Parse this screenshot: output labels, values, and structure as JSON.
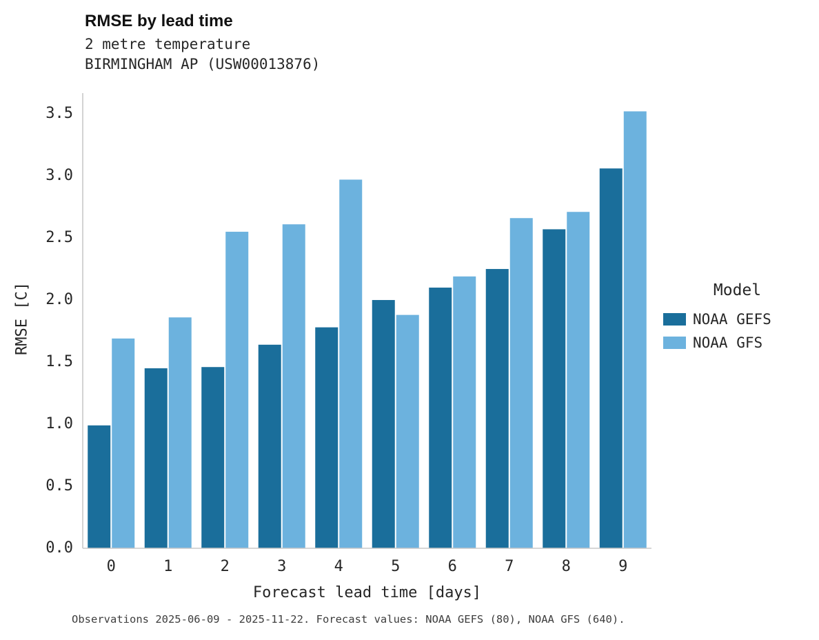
{
  "header": {
    "title": "RMSE by lead time"
  },
  "footer": {
    "note": "Observations 2025-06-09 - 2025-11-22. Forecast values: NOAA GEFS (80), NOAA GFS (640)."
  },
  "chart_data": {
    "type": "bar",
    "title": "RMSE by lead time",
    "subtitle": [
      "2 metre temperature",
      "BIRMINGHAM AP (USW00013876)"
    ],
    "categories": [
      0,
      1,
      2,
      3,
      4,
      5,
      6,
      7,
      8,
      9
    ],
    "series": [
      {
        "name": "NOAA GEFS",
        "color": "#1a6e9b",
        "values": [
          0.99,
          1.45,
          1.46,
          1.64,
          1.78,
          2.0,
          2.1,
          2.25,
          2.57,
          3.06
        ]
      },
      {
        "name": "NOAA GFS",
        "color": "#6cb2de",
        "values": [
          1.69,
          1.86,
          2.55,
          2.61,
          2.97,
          1.88,
          2.19,
          2.66,
          2.71,
          3.52
        ]
      }
    ],
    "xlabel": "Forecast lead time [days]",
    "ylabel": "RMSE [C]",
    "ylim": [
      0,
      3.667
    ],
    "yticks": [
      0.0,
      0.5,
      1.0,
      1.5,
      2.0,
      2.5,
      3.0,
      3.5
    ],
    "grid": false,
    "legend": {
      "title": "Model",
      "position": "right"
    },
    "axis_color": "#c8c8c8"
  }
}
